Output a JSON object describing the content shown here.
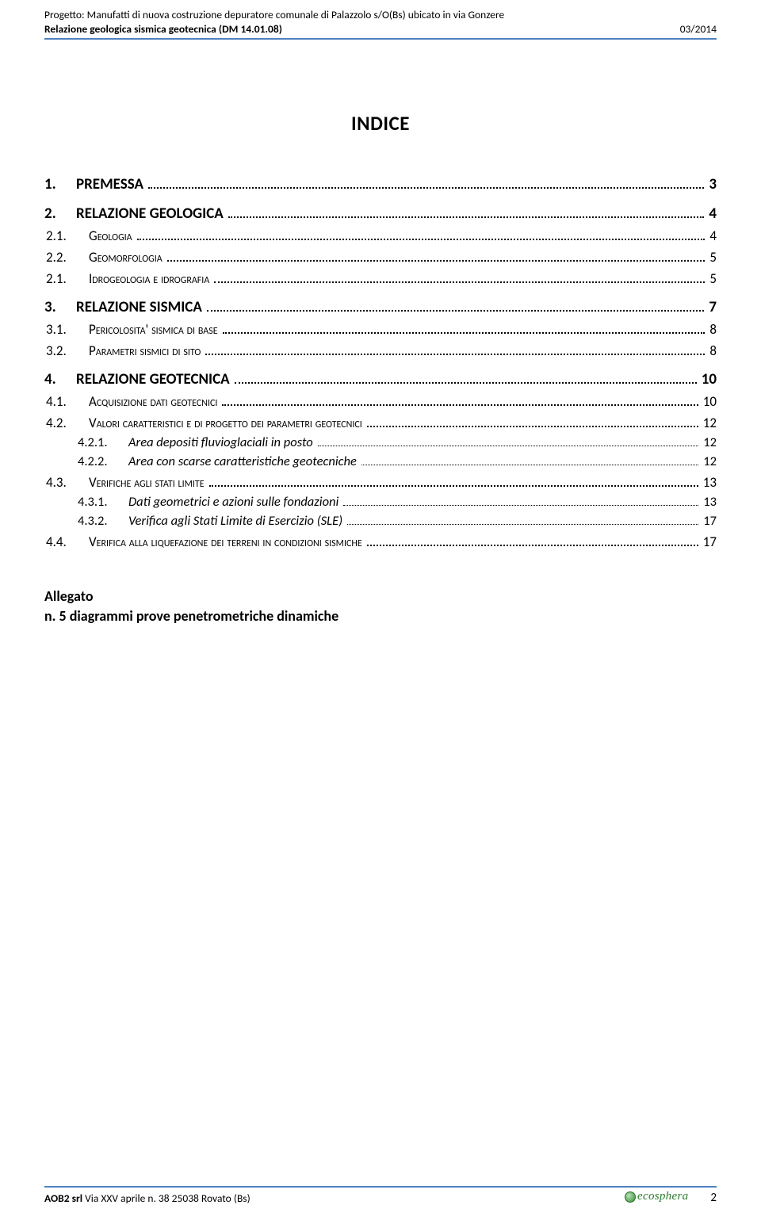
{
  "header": {
    "project_line": "Progetto: Manufatti di nuova costruzione depuratore comunale di Palazzolo s/O(Bs) ubicato in via Gonzere",
    "doc_line_left": "Relazione geologica sismica geotecnica (DM 14.01.08)",
    "doc_line_right": "03/2014"
  },
  "title": "INDICE",
  "toc": [
    {
      "level": 1,
      "num": "1.",
      "label": "PREMESSA",
      "page": "3"
    },
    {
      "level": 1,
      "num": "2.",
      "label": "RELAZIONE GEOLOGICA",
      "page": "4"
    },
    {
      "level": 2,
      "num": "2.1.",
      "label": "Geologia",
      "page": "4"
    },
    {
      "level": 2,
      "num": "2.2.",
      "label": "Geomorfologia",
      "page": "5"
    },
    {
      "level": 2,
      "num": "2.1.",
      "label": "Idrogeologia e idrografia",
      "page": "5"
    },
    {
      "level": 1,
      "num": "3.",
      "label": "RELAZIONE SISMICA",
      "page": "7"
    },
    {
      "level": 2,
      "num": "3.1.",
      "label": "Pericolosita' sismica di base",
      "page": "8"
    },
    {
      "level": 2,
      "num": "3.2.",
      "label": "Parametri sismici di sito",
      "page": "8"
    },
    {
      "level": 1,
      "num": "4.",
      "label": "RELAZIONE GEOTECNICA",
      "page": "10"
    },
    {
      "level": 2,
      "num": "4.1.",
      "label": "Acquisizione dati geotecnici",
      "page": "10"
    },
    {
      "level": 2,
      "num": "4.2.",
      "label": "Valori caratteristici e di progetto dei parametri geotecnici",
      "page": "12"
    },
    {
      "level": 3,
      "num": "4.2.1.",
      "label": "Area depositi fluvioglaciali in posto",
      "page": "12"
    },
    {
      "level": 3,
      "num": "4.2.2.",
      "label": "Area con scarse caratteristiche geotecniche",
      "page": "12"
    },
    {
      "level": 2,
      "num": "4.3.",
      "label": "Verifiche agli stati limite",
      "page": "13"
    },
    {
      "level": 3,
      "num": "4.3.1.",
      "label": "Dati geometrici e azioni sulle fondazioni",
      "page": "13"
    },
    {
      "level": 3,
      "num": "4.3.2.",
      "label": "Verifica agli Stati Limite di Esercizio (SLE)",
      "page": "17"
    },
    {
      "level": 2,
      "num": "4.4.",
      "label": "Verifica alla liquefazione dei terreni in condizioni sismiche",
      "page": "17"
    }
  ],
  "allegato": {
    "line1": "Allegato",
    "line2": "n. 5 diagrammi prove penetrometriche dinamiche"
  },
  "footer": {
    "left_bold": "AOB2 srl",
    "left_rest": " Via XXV aprile n. 38 25038  Rovato (Bs)",
    "logo_text": "ecosphera",
    "page_number": "2"
  },
  "colors": {
    "rule": "#4f81bd",
    "logo": "#2a7a2a"
  }
}
